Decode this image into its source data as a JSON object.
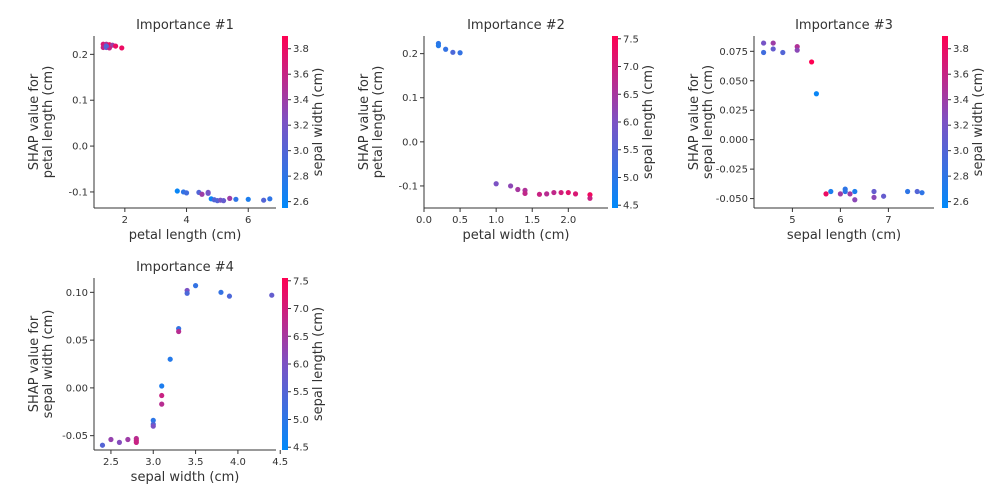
{
  "chart_data": [
    {
      "type": "scatter",
      "title": "Importance #1",
      "xlabel": "petal length (cm)",
      "ylabel": [
        "SHAP value for",
        "petal length (cm)"
      ],
      "xlim": [
        1.0,
        6.9
      ],
      "ylim": [
        -0.135,
        0.24
      ],
      "xticks": [
        2,
        4,
        6
      ],
      "yticks": [
        -0.1,
        0.0,
        0.1,
        0.2
      ],
      "colorbar": {
        "label": "sepal width (cm)",
        "range": [
          2.55,
          3.9
        ],
        "ticks": [
          2.6,
          2.8,
          3.0,
          3.2,
          3.4,
          3.6,
          3.8
        ]
      },
      "points": [
        [
          1.3,
          0.222,
          3.7
        ],
        [
          1.4,
          0.222,
          3.5
        ],
        [
          1.5,
          0.221,
          3.8
        ],
        [
          1.6,
          0.22,
          3.4
        ],
        [
          1.3,
          0.215,
          3.6
        ],
        [
          1.4,
          0.215,
          3.1
        ],
        [
          1.5,
          0.214,
          3.6
        ],
        [
          1.7,
          0.218,
          3.8
        ],
        [
          1.9,
          0.214,
          3.8
        ],
        [
          1.4,
          0.218,
          3.0
        ],
        [
          3.7,
          -0.098,
          2.6
        ],
        [
          3.9,
          -0.1,
          2.8
        ],
        [
          4.0,
          -0.102,
          2.9
        ],
        [
          4.4,
          -0.101,
          3.0
        ],
        [
          4.5,
          -0.105,
          3.4
        ],
        [
          4.7,
          -0.103,
          3.1
        ],
        [
          4.7,
          -0.101,
          3.2
        ],
        [
          4.8,
          -0.115,
          2.6
        ],
        [
          4.9,
          -0.117,
          3.0
        ],
        [
          5.0,
          -0.119,
          3.0
        ],
        [
          5.1,
          -0.118,
          3.2
        ],
        [
          5.2,
          -0.119,
          3.1
        ],
        [
          5.4,
          -0.114,
          3.4
        ],
        [
          5.6,
          -0.116,
          2.8
        ],
        [
          6.0,
          -0.116,
          2.7
        ],
        [
          6.5,
          -0.118,
          3.0
        ],
        [
          6.7,
          -0.115,
          2.8
        ]
      ]
    },
    {
      "type": "scatter",
      "title": "Importance #2",
      "xlabel": "petal width (cm)",
      "ylabel": [
        "SHAP value for",
        "petal length (cm)"
      ],
      "xlim": [
        0.0,
        2.55
      ],
      "ylim": [
        -0.15,
        0.24
      ],
      "xticks": [
        0.0,
        0.5,
        1.0,
        1.5,
        2.0
      ],
      "yticks": [
        -0.1,
        0.0,
        0.1,
        0.2
      ],
      "colorbar": {
        "label": "sepal length (cm)",
        "range": [
          4.45,
          7.55
        ],
        "ticks": [
          4.5,
          5.0,
          5.5,
          6.0,
          6.5,
          7.0,
          7.5
        ]
      },
      "points": [
        [
          0.2,
          0.223,
          5.0
        ],
        [
          0.2,
          0.218,
          4.9
        ],
        [
          0.3,
          0.21,
          5.1
        ],
        [
          0.4,
          0.203,
          5.4
        ],
        [
          0.5,
          0.202,
          5.1
        ],
        [
          1.0,
          -0.095,
          6.0
        ],
        [
          1.2,
          -0.1,
          6.2
        ],
        [
          1.3,
          -0.108,
          6.5
        ],
        [
          1.4,
          -0.11,
          6.6
        ],
        [
          1.4,
          -0.117,
          6.8
        ],
        [
          1.6,
          -0.119,
          6.9
        ],
        [
          1.7,
          -0.118,
          6.7
        ],
        [
          1.8,
          -0.115,
          6.8
        ],
        [
          1.9,
          -0.115,
          7.0
        ],
        [
          2.0,
          -0.115,
          7.2
        ],
        [
          2.1,
          -0.118,
          7.1
        ],
        [
          2.3,
          -0.12,
          7.4
        ],
        [
          2.3,
          -0.128,
          6.9
        ]
      ]
    },
    {
      "type": "scatter",
      "title": "Importance #3",
      "xlabel": "sepal length (cm)",
      "ylabel": [
        "SHAP value for",
        "sepal length (cm)"
      ],
      "xlim": [
        4.2,
        7.95
      ],
      "ylim": [
        -0.058,
        0.088
      ],
      "xticks": [
        5,
        6,
        7
      ],
      "yticks": [
        -0.05,
        -0.025,
        0.0,
        0.025,
        0.05,
        0.075
      ],
      "colorbar": {
        "label": "sepal width (cm)",
        "range": [
          2.55,
          3.9
        ],
        "ticks": [
          2.6,
          2.8,
          3.0,
          3.2,
          3.4,
          3.6,
          3.8
        ]
      },
      "points": [
        [
          4.4,
          0.082,
          3.2
        ],
        [
          4.4,
          0.074,
          2.9
        ],
        [
          4.6,
          0.082,
          3.4
        ],
        [
          4.6,
          0.077,
          3.1
        ],
        [
          4.8,
          0.074,
          3.0
        ],
        [
          5.1,
          0.079,
          3.5
        ],
        [
          5.1,
          0.076,
          3.3
        ],
        [
          5.4,
          0.066,
          3.9
        ],
        [
          5.5,
          0.039,
          2.6
        ],
        [
          5.7,
          -0.046,
          3.8
        ],
        [
          5.8,
          -0.044,
          2.7
        ],
        [
          6.0,
          -0.046,
          3.4
        ],
        [
          6.1,
          -0.042,
          2.8
        ],
        [
          6.1,
          -0.044,
          2.8
        ],
        [
          6.2,
          -0.046,
          3.4
        ],
        [
          6.3,
          -0.044,
          2.7
        ],
        [
          6.3,
          -0.051,
          3.3
        ],
        [
          6.7,
          -0.044,
          3.1
        ],
        [
          6.7,
          -0.049,
          3.3
        ],
        [
          6.9,
          -0.048,
          3.1
        ],
        [
          7.4,
          -0.044,
          2.8
        ],
        [
          7.6,
          -0.044,
          3.0
        ],
        [
          7.7,
          -0.045,
          2.8
        ]
      ]
    },
    {
      "type": "scatter",
      "title": "Importance #4",
      "xlabel": "sepal width (cm)",
      "ylabel": [
        "SHAP value for",
        "sepal width (cm)"
      ],
      "xlim": [
        2.3,
        4.45
      ],
      "ylim": [
        -0.065,
        0.115
      ],
      "xticks": [
        2.5,
        3.0,
        3.5,
        4.0,
        4.5
      ],
      "yticks": [
        -0.05,
        0.0,
        0.05,
        0.1
      ],
      "colorbar": {
        "label": "sepal length (cm)",
        "range": [
          4.45,
          7.55
        ],
        "ticks": [
          4.5,
          5.0,
          5.5,
          6.0,
          6.5,
          7.0,
          7.5
        ]
      },
      "points": [
        [
          2.4,
          -0.06,
          5.5
        ],
        [
          2.5,
          -0.054,
          6.3
        ],
        [
          2.6,
          -0.057,
          6.1
        ],
        [
          2.7,
          -0.054,
          6.4
        ],
        [
          2.8,
          -0.053,
          6.7
        ],
        [
          2.8,
          -0.055,
          6.8
        ],
        [
          2.8,
          -0.057,
          6.9
        ],
        [
          3.0,
          -0.034,
          5.0
        ],
        [
          3.0,
          -0.038,
          5.4
        ],
        [
          3.0,
          -0.04,
          6.0
        ],
        [
          3.1,
          0.002,
          4.8
        ],
        [
          3.1,
          -0.008,
          6.9
        ],
        [
          3.1,
          -0.017,
          6.7
        ],
        [
          3.2,
          0.03,
          4.9
        ],
        [
          3.3,
          0.062,
          5.1
        ],
        [
          3.3,
          0.059,
          6.7
        ],
        [
          3.4,
          0.102,
          6.0
        ],
        [
          3.4,
          0.099,
          5.4
        ],
        [
          3.5,
          0.107,
          5.1
        ],
        [
          3.8,
          0.1,
          5.1
        ],
        [
          3.9,
          0.096,
          5.4
        ],
        [
          4.4,
          0.097,
          5.7
        ]
      ]
    }
  ]
}
